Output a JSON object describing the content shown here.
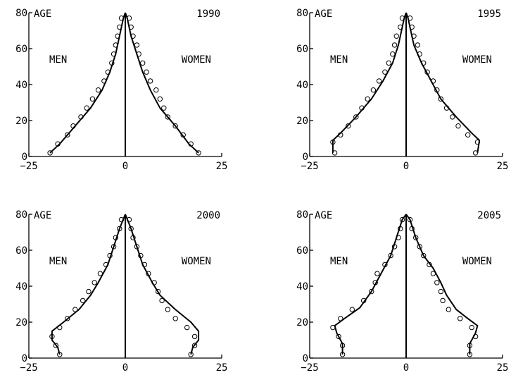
{
  "figure": {
    "panels": [
      {
        "year": "1990",
        "axis_label": "AGE",
        "left_label": "MEN",
        "right_label": "WOMEN",
        "y_ticks": [
          "0",
          "20",
          "40",
          "60",
          "80"
        ],
        "x_ticks": [
          "−25",
          "0",
          "25"
        ]
      },
      {
        "year": "1995",
        "axis_label": "AGE",
        "left_label": "MEN",
        "right_label": "WOMEN",
        "y_ticks": [
          "0",
          "20",
          "40",
          "60",
          "80"
        ],
        "x_ticks": [
          "−25",
          "0",
          "25"
        ]
      },
      {
        "year": "2000",
        "axis_label": "AGE",
        "left_label": "MEN",
        "right_label": "WOMEN",
        "y_ticks": [
          "0",
          "20",
          "40",
          "60",
          "80"
        ],
        "x_ticks": [
          "−25",
          "0",
          "25"
        ]
      },
      {
        "year": "2005",
        "axis_label": "AGE",
        "left_label": "MEN",
        "right_label": "WOMEN",
        "y_ticks": [
          "0",
          "20",
          "40",
          "60",
          "80"
        ],
        "x_ticks": [
          "−25",
          "0",
          "25"
        ]
      }
    ]
  },
  "chart_data": [
    {
      "type": "line",
      "title": "1990",
      "ylabel": "AGE",
      "xlim": [
        -25,
        25
      ],
      "ylim": [
        0,
        80
      ],
      "grid": false,
      "series": [
        {
          "name": "MEN",
          "line": [
            [
              -19.5,
              2
            ],
            [
              -17,
              7
            ],
            [
              -13,
              17
            ],
            [
              -9,
              27
            ],
            [
              -6,
              37
            ],
            [
              -4,
              47
            ],
            [
              -2.5,
              57
            ],
            [
              -1.5,
              67
            ],
            [
              -0.5,
              77
            ],
            [
              0,
              80
            ]
          ],
          "points": [
            [
              -19.5,
              2
            ],
            [
              -17.5,
              7
            ],
            [
              -15,
              12
            ],
            [
              -13.5,
              17
            ],
            [
              -11.5,
              22
            ],
            [
              -10,
              27
            ],
            [
              -8.5,
              32
            ],
            [
              -7,
              37
            ],
            [
              -5.5,
              42
            ],
            [
              -4.5,
              47
            ],
            [
              -3.5,
              52
            ],
            [
              -3,
              57
            ],
            [
              -2.5,
              62
            ],
            [
              -2,
              67
            ],
            [
              -1.5,
              72
            ],
            [
              -1,
              77
            ]
          ]
        },
        {
          "name": "WOMEN",
          "line": [
            [
              0,
              80
            ],
            [
              0.5,
              77
            ],
            [
              1.5,
              67
            ],
            [
              3,
              57
            ],
            [
              4.5,
              47
            ],
            [
              6.5,
              37
            ],
            [
              9,
              27
            ],
            [
              13,
              17
            ],
            [
              16.5,
              7
            ],
            [
              19,
              2
            ]
          ],
          "points": [
            [
              1,
              77
            ],
            [
              1.5,
              72
            ],
            [
              2,
              67
            ],
            [
              3,
              62
            ],
            [
              3.5,
              57
            ],
            [
              4.5,
              52
            ],
            [
              5.5,
              47
            ],
            [
              6.5,
              42
            ],
            [
              8,
              37
            ],
            [
              9,
              32
            ],
            [
              10,
              27
            ],
            [
              11,
              22
            ],
            [
              13,
              17
            ],
            [
              15,
              12
            ],
            [
              17,
              7
            ],
            [
              19,
              2
            ]
          ]
        }
      ]
    },
    {
      "type": "line",
      "title": "1995",
      "ylabel": "AGE",
      "xlim": [
        -25,
        25
      ],
      "ylim": [
        0,
        80
      ],
      "grid": false,
      "series": [
        {
          "name": "MEN",
          "line": [
            [
              -19,
              2
            ],
            [
              -19,
              9
            ],
            [
              -17,
              13
            ],
            [
              -13,
              22
            ],
            [
              -9,
              32
            ],
            [
              -6,
              42
            ],
            [
              -3.5,
              52
            ],
            [
              -2,
              62
            ],
            [
              -0.5,
              77
            ],
            [
              0,
              80
            ]
          ],
          "points": [
            [
              -18.5,
              2
            ],
            [
              -19,
              8
            ],
            [
              -17,
              12
            ],
            [
              -15,
              17
            ],
            [
              -13,
              22
            ],
            [
              -11.5,
              27
            ],
            [
              -10,
              32
            ],
            [
              -8.5,
              37
            ],
            [
              -7,
              42
            ],
            [
              -5.5,
              47
            ],
            [
              -4.5,
              52
            ],
            [
              -3.5,
              57
            ],
            [
              -3,
              62
            ],
            [
              -2.5,
              67
            ],
            [
              -1.5,
              72
            ],
            [
              -1,
              77
            ]
          ]
        },
        {
          "name": "WOMEN",
          "line": [
            [
              0,
              80
            ],
            [
              0.5,
              77
            ],
            [
              2,
              62
            ],
            [
              4,
              52
            ],
            [
              6.5,
              42
            ],
            [
              9,
              32
            ],
            [
              13,
              22
            ],
            [
              17,
              13
            ],
            [
              19,
              9
            ],
            [
              18.5,
              2
            ]
          ],
          "points": [
            [
              1,
              77
            ],
            [
              1.5,
              72
            ],
            [
              2,
              67
            ],
            [
              3,
              62
            ],
            [
              3.5,
              57
            ],
            [
              4.5,
              52
            ],
            [
              5.5,
              47
            ],
            [
              7,
              42
            ],
            [
              8,
              37
            ],
            [
              9,
              32
            ],
            [
              10.5,
              27
            ],
            [
              12,
              22
            ],
            [
              13.5,
              17
            ],
            [
              16,
              12
            ],
            [
              18.5,
              8
            ],
            [
              18,
              2
            ]
          ]
        }
      ]
    },
    {
      "type": "line",
      "title": "2000",
      "ylabel": "AGE",
      "xlim": [
        -25,
        25
      ],
      "ylim": [
        0,
        80
      ],
      "grid": false,
      "series": [
        {
          "name": "MEN",
          "line": [
            [
              -17,
              2
            ],
            [
              -17.5,
              6
            ],
            [
              -19,
              10
            ],
            [
              -19,
              15
            ],
            [
              -16,
              20
            ],
            [
              -12,
              27
            ],
            [
              -9,
              35
            ],
            [
              -7,
              42
            ],
            [
              -4.5,
              52
            ],
            [
              -3,
              62
            ],
            [
              -1.5,
              72
            ],
            [
              0,
              80
            ]
          ],
          "points": [
            [
              -17,
              2
            ],
            [
              -18,
              7
            ],
            [
              -19,
              12
            ],
            [
              -17,
              17
            ],
            [
              -15,
              22
            ],
            [
              -13,
              27
            ],
            [
              -11,
              32
            ],
            [
              -9.5,
              37
            ],
            [
              -8,
              42
            ],
            [
              -6.5,
              47
            ],
            [
              -5,
              52
            ],
            [
              -4,
              57
            ],
            [
              -3,
              62
            ],
            [
              -2.5,
              67
            ],
            [
              -1.5,
              72
            ],
            [
              -1,
              77
            ]
          ]
        },
        {
          "name": "WOMEN",
          "line": [
            [
              0,
              80
            ],
            [
              1.5,
              72
            ],
            [
              3,
              62
            ],
            [
              4.5,
              52
            ],
            [
              7,
              42
            ],
            [
              9,
              35
            ],
            [
              13,
              27
            ],
            [
              17,
              20
            ],
            [
              19,
              15
            ],
            [
              19,
              10
            ],
            [
              17.5,
              6
            ],
            [
              17,
              2
            ]
          ],
          "points": [
            [
              1,
              77
            ],
            [
              1.5,
              72
            ],
            [
              2,
              67
            ],
            [
              3,
              62
            ],
            [
              4,
              57
            ],
            [
              5,
              52
            ],
            [
              6,
              47
            ],
            [
              7.5,
              42
            ],
            [
              8.5,
              37
            ],
            [
              9.5,
              32
            ],
            [
              11,
              27
            ],
            [
              13,
              22
            ],
            [
              16,
              17
            ],
            [
              18,
              12
            ],
            [
              18,
              7
            ],
            [
              17,
              2
            ]
          ]
        }
      ]
    },
    {
      "type": "line",
      "title": "2005",
      "ylabel": "AGE",
      "xlim": [
        -25,
        25
      ],
      "ylim": [
        0,
        80
      ],
      "grid": false,
      "series": [
        {
          "name": "MEN",
          "line": [
            [
              -16.5,
              2
            ],
            [
              -16.5,
              8
            ],
            [
              -18,
              14
            ],
            [
              -18.5,
              18
            ],
            [
              -16,
              22
            ],
            [
              -12,
              28
            ],
            [
              -9,
              37
            ],
            [
              -6.5,
              47
            ],
            [
              -4,
              57
            ],
            [
              -2.5,
              67
            ],
            [
              -1,
              77
            ],
            [
              0,
              80
            ]
          ],
          "points": [
            [
              -16.5,
              2
            ],
            [
              -16.5,
              7
            ],
            [
              -17.5,
              12
            ],
            [
              -19,
              17
            ],
            [
              -17,
              22
            ],
            [
              -14,
              27
            ],
            [
              -11,
              32
            ],
            [
              -9,
              37
            ],
            [
              -8,
              42
            ],
            [
              -7.5,
              47
            ],
            [
              -5.5,
              52
            ],
            [
              -4,
              57
            ],
            [
              -3,
              62
            ],
            [
              -2,
              67
            ],
            [
              -1.5,
              72
            ],
            [
              -1,
              77
            ]
          ]
        },
        {
          "name": "WOMEN",
          "line": [
            [
              0,
              80
            ],
            [
              1,
              77
            ],
            [
              2.5,
              67
            ],
            [
              4.5,
              57
            ],
            [
              7,
              50
            ],
            [
              9,
              42
            ],
            [
              10.5,
              35
            ],
            [
              13,
              27
            ],
            [
              16,
              22
            ],
            [
              18.5,
              18
            ],
            [
              18,
              14
            ],
            [
              16.5,
              8
            ],
            [
              16.5,
              2
            ]
          ],
          "points": [
            [
              1,
              77
            ],
            [
              1.5,
              72
            ],
            [
              2.5,
              67
            ],
            [
              3.5,
              62
            ],
            [
              4.5,
              57
            ],
            [
              6,
              52
            ],
            [
              7,
              47
            ],
            [
              8,
              42
            ],
            [
              9,
              37
            ],
            [
              9.5,
              32
            ],
            [
              11,
              27
            ],
            [
              14,
              22
            ],
            [
              17,
              17
            ],
            [
              18,
              12
            ],
            [
              16.5,
              7
            ],
            [
              16.5,
              2
            ]
          ]
        }
      ]
    }
  ]
}
